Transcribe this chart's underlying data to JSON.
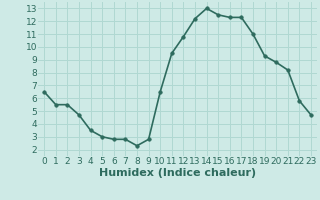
{
  "x": [
    0,
    1,
    2,
    3,
    4,
    5,
    6,
    7,
    8,
    9,
    10,
    11,
    12,
    13,
    14,
    15,
    16,
    17,
    18,
    19,
    20,
    21,
    22,
    23
  ],
  "y": [
    6.5,
    5.5,
    5.5,
    4.7,
    3.5,
    3.0,
    2.8,
    2.8,
    2.3,
    2.8,
    6.5,
    9.5,
    10.8,
    12.2,
    13.0,
    12.5,
    12.3,
    12.3,
    11.0,
    9.3,
    8.8,
    8.2,
    5.8,
    4.7
  ],
  "line_color": "#2e6b5e",
  "marker_color": "#2e6b5e",
  "bg_color": "#ceeae6",
  "grid_color": "#b0d8d2",
  "xlabel": "Humidex (Indice chaleur)",
  "xlim": [
    -0.5,
    23.5
  ],
  "ylim": [
    1.5,
    13.5
  ],
  "yticks": [
    2,
    3,
    4,
    5,
    6,
    7,
    8,
    9,
    10,
    11,
    12,
    13
  ],
  "xticks": [
    0,
    1,
    2,
    3,
    4,
    5,
    6,
    7,
    8,
    9,
    10,
    11,
    12,
    13,
    14,
    15,
    16,
    17,
    18,
    19,
    20,
    21,
    22,
    23
  ],
  "tick_color": "#2e6b5e",
  "tick_fontsize": 6.5,
  "xlabel_fontsize": 8,
  "line_width": 1.2,
  "marker_size": 2.5
}
